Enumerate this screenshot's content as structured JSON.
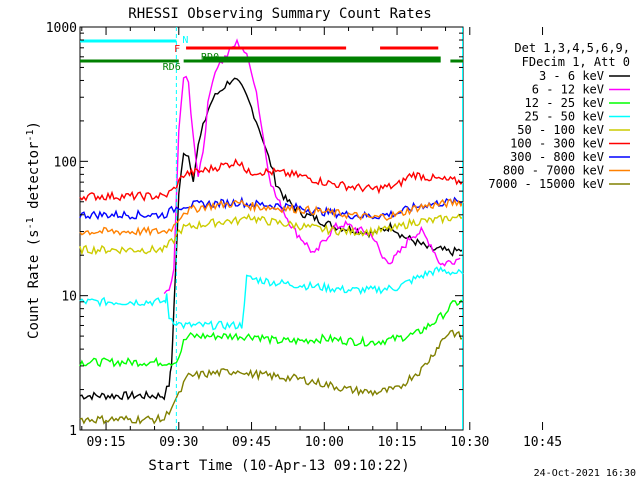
{
  "chart_data": {
    "type": "line",
    "title": "RHESSI Observing Summary Count Rates",
    "xlabel": "Start Time (10-Apr-13 09:10:22)",
    "ylabel_main": "Count Rate (s",
    "ylabel_sup": "-1",
    "ylabel_mid": " detector",
    "ylabel_sup2": "-1",
    "ylabel_end": ")",
    "yscale": "log",
    "ylim": [
      1,
      1000
    ],
    "xlim_minutes": [
      9.63,
      88.6
    ],
    "y_ticks": [
      {
        "value": 1,
        "label": "1"
      },
      {
        "value": 10,
        "label": "10"
      },
      {
        "value": 100,
        "label": "100"
      },
      {
        "value": 1000,
        "label": "1000"
      }
    ],
    "x_ticks": [
      {
        "minutes": 15,
        "label": "09:15"
      },
      {
        "minutes": 30,
        "label": "09:30"
      },
      {
        "minutes": 45,
        "label": "09:45"
      },
      {
        "minutes": 60,
        "label": "10:00"
      },
      {
        "minutes": 75,
        "label": "10:15"
      },
      {
        "minutes": 90,
        "label": "10:30"
      },
      {
        "minutes": 105,
        "label": "10:45"
      }
    ],
    "legend_header": [
      "Det 1,3,4,5,6,9,",
      "FDecim 1, Att 0"
    ],
    "series": [
      {
        "name": "3 - 6 keV",
        "color": "#000000",
        "x": [
          9.6,
          27,
          28,
          28.5,
          29,
          30,
          31,
          32,
          33,
          34,
          35,
          36,
          37,
          38,
          39,
          40,
          41,
          42,
          43,
          44,
          45,
          46,
          47,
          48,
          49,
          50,
          52,
          54,
          56,
          58,
          60,
          62,
          64,
          66,
          68,
          70,
          72,
          74,
          76,
          78,
          80,
          82,
          84,
          86,
          88.6
        ],
        "y": [
          1.8,
          1.8,
          2.2,
          3,
          8,
          55,
          120,
          110,
          75,
          130,
          180,
          240,
          290,
          320,
          350,
          380,
          410,
          390,
          350,
          300,
          250,
          200,
          160,
          120,
          95,
          70,
          52,
          45,
          40,
          38,
          35,
          33,
          32,
          31,
          30,
          29,
          31,
          33,
          28,
          26,
          24,
          22,
          22,
          21,
          22
        ]
      },
      {
        "name": "6 - 12 keV",
        "color": "#ff00ff",
        "x": [
          27,
          28,
          29,
          30,
          31,
          32,
          33,
          34,
          35,
          36,
          37,
          38,
          39,
          40,
          41,
          42,
          43,
          44,
          45,
          46,
          47,
          48,
          49,
          50,
          52,
          54,
          56,
          58,
          60,
          62,
          64,
          66,
          68,
          70,
          72,
          74,
          76,
          78,
          80,
          82,
          84,
          86,
          88
        ],
        "y": [
          10,
          11,
          15,
          180,
          420,
          380,
          150,
          80,
          120,
          260,
          420,
          520,
          560,
          620,
          700,
          760,
          720,
          600,
          480,
          330,
          190,
          110,
          70,
          55,
          40,
          30,
          25,
          20,
          26,
          32,
          34,
          32,
          30,
          28,
          19,
          18,
          22,
          28,
          30,
          24,
          17,
          18,
          19
        ]
      },
      {
        "name": "12 - 25 keV",
        "color": "#00ff00",
        "x": [
          9.6,
          27,
          28,
          29,
          30,
          31,
          32,
          35,
          38,
          41,
          43,
          44,
          46,
          50,
          55,
          60,
          65,
          70,
          75,
          79,
          81,
          83,
          84,
          85,
          86,
          87,
          88.6
        ],
        "y": [
          3.2,
          3.2,
          3.2,
          3.2,
          3.5,
          4.5,
          5.0,
          5.0,
          5.0,
          5.0,
          5.0,
          5.0,
          5.0,
          4.6,
          4.6,
          4.8,
          4.6,
          4.5,
          4.8,
          5.2,
          5.8,
          6.5,
          7.0,
          7.5,
          8.3,
          8.8,
          9.0
        ]
      },
      {
        "name": "25 - 50 keV",
        "color": "#00ffff",
        "x": [
          9.6,
          27,
          27.5,
          28,
          29,
          30,
          31,
          35,
          40,
          43,
          44,
          46,
          50,
          55,
          60,
          65,
          70,
          75,
          78,
          80,
          82,
          84,
          86,
          88.6
        ],
        "y": [
          9.0,
          9.0,
          9.8,
          7.0,
          6.5,
          6.2,
          6.0,
          6.0,
          6.0,
          6.0,
          13.5,
          13.2,
          12.5,
          12.0,
          11.5,
          11.0,
          11.0,
          11.5,
          13.0,
          14.0,
          15.0,
          15.5,
          15.0,
          14.5
        ]
      },
      {
        "name": "50 - 100 keV",
        "color": "#cccc00",
        "x": [
          9.6,
          27,
          28,
          29,
          30,
          31,
          35,
          40,
          43,
          44,
          46,
          50,
          55,
          60,
          65,
          70,
          75,
          78,
          80,
          82,
          84,
          86,
          88.6
        ],
        "y": [
          22,
          22,
          24,
          26,
          30,
          32,
          34,
          36,
          36,
          40,
          37,
          35,
          33,
          31,
          30,
          30,
          32,
          35,
          36,
          36,
          37,
          38,
          38
        ]
      },
      {
        "name": "100 - 300 keV",
        "color": "#ff0000",
        "x": [
          9.6,
          27,
          28,
          29,
          30,
          31,
          35,
          40,
          43,
          44,
          46,
          50,
          55,
          60,
          65,
          70,
          75,
          78,
          80,
          82,
          84,
          86,
          88.6
        ],
        "y": [
          55,
          55,
          58,
          62,
          70,
          80,
          85,
          95,
          100,
          82,
          84,
          83,
          78,
          70,
          65,
          62,
          66,
          80,
          78,
          75,
          73,
          72,
          70
        ]
      },
      {
        "name": "300 - 800 keV",
        "color": "#0000ff",
        "x": [
          9.6,
          27,
          28,
          29,
          30,
          31,
          35,
          40,
          43,
          44,
          46,
          50,
          55,
          60,
          65,
          70,
          75,
          78,
          80,
          82,
          84,
          86,
          88.6
        ],
        "y": [
          40,
          40,
          42,
          44,
          46,
          47,
          48,
          49,
          50,
          48,
          48,
          47,
          45,
          42,
          40,
          39,
          41,
          45,
          47,
          48,
          49,
          50,
          50
        ]
      },
      {
        "name": "800 - 7000 keV",
        "color": "#ff8000",
        "x": [
          9.6,
          27,
          28,
          29,
          30,
          31,
          35,
          40,
          43,
          44,
          46,
          50,
          55,
          60,
          65,
          70,
          75,
          78,
          80,
          82,
          84,
          86,
          88.6
        ],
        "y": [
          30,
          30,
          31,
          33,
          38,
          42,
          46,
          48,
          49,
          47,
          46,
          45,
          44,
          42,
          40,
          38,
          40,
          44,
          46,
          47,
          48,
          49,
          50
        ]
      },
      {
        "name": "7000 - 15000 keV",
        "color": "#808000",
        "x": [
          9.6,
          27,
          28,
          29,
          30,
          31,
          32,
          35,
          40,
          43,
          44,
          46,
          50,
          55,
          60,
          65,
          70,
          75,
          78,
          80,
          82,
          84,
          86,
          88.6
        ],
        "y": [
          1.2,
          1.2,
          1.4,
          1.6,
          1.8,
          2.2,
          2.5,
          2.6,
          2.7,
          2.8,
          2.6,
          2.6,
          2.5,
          2.4,
          2.2,
          2.0,
          1.9,
          2.0,
          2.5,
          2.8,
          3.5,
          4.5,
          5.5,
          4.8
        ]
      }
    ],
    "vertical_markers": [
      {
        "minutes": 29.5,
        "color": "#00ffff",
        "style": "dashed"
      },
      {
        "minutes": 88.5,
        "color": "#00ffff",
        "style": "solid"
      }
    ],
    "flag_bars": [
      {
        "label": "N",
        "color": "#00ffff",
        "y": 1.0,
        "segments": [
          [
            9.6,
            29.5
          ],
          [
            88.5,
            102.5
          ]
        ]
      },
      {
        "label": "F",
        "color": "#ff0000",
        "y": 2.0,
        "segments": [
          [
            31.5,
            64.5
          ],
          [
            71.5,
            83.5
          ]
        ]
      },
      {
        "label": "RD0",
        "color": "#008000",
        "y": 3.0,
        "segments": [
          [
            35,
            84
          ]
        ]
      },
      {
        "label": "RD6",
        "color": "#008000",
        "y": 3.0,
        "segments": [
          [
            9.6,
            30
          ],
          [
            31,
            84
          ],
          [
            86,
            102.5
          ]
        ]
      }
    ]
  },
  "footer": {
    "timestamp": "24-Oct-2021 16:30"
  }
}
